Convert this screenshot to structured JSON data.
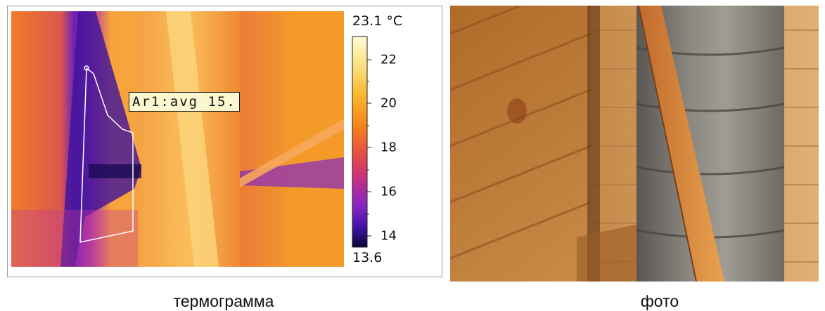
{
  "thermogram": {
    "scale_max": "23.1 °C",
    "scale_min": "13.6",
    "ticks": [
      "22",
      "20",
      "18",
      "16",
      "14"
    ],
    "area_label": "Ar1:avg 15.",
    "palette": [
      "#fffbd8",
      "#fde58a",
      "#fbb62d",
      "#f5851d",
      "#e8503e",
      "#c52e86",
      "#8a26c6",
      "#3e11a4",
      "#0b0535"
    ]
  },
  "captions": {
    "left": "термограмма",
    "right": "фото"
  }
}
